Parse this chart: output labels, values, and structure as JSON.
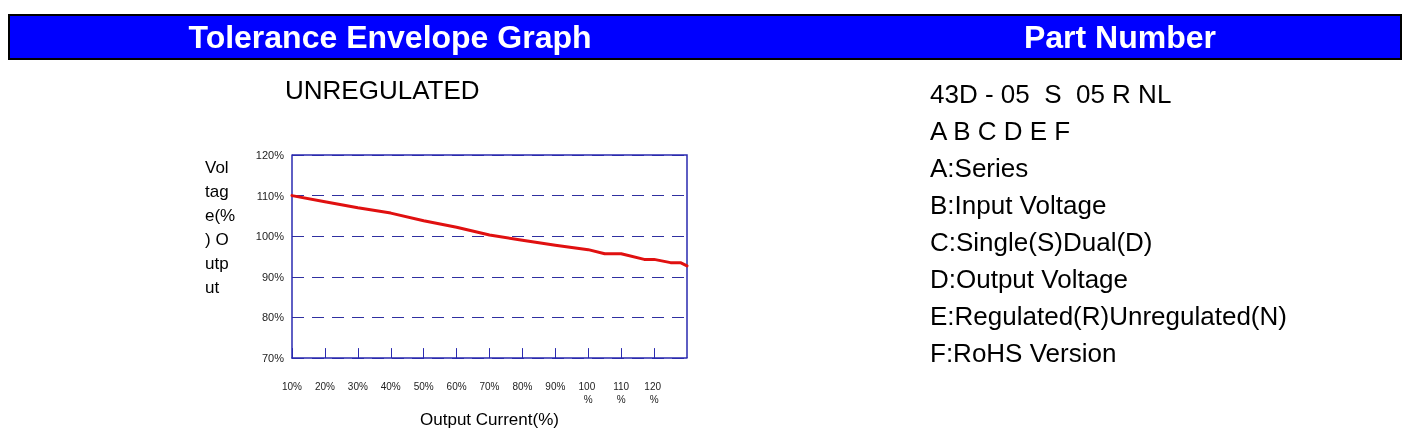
{
  "chart_data": [
    {
      "type": "line",
      "title": "Tolerance Envelope Graph",
      "subtitle": "UNREGULATED",
      "xlabel": "Output Current(%)",
      "ylabel": "Voltage(%) Output",
      "x": [
        10,
        20,
        30,
        40,
        50,
        60,
        70,
        80,
        90,
        100,
        105,
        110,
        117,
        120,
        125,
        128,
        130
      ],
      "series": [
        {
          "color": "#e01010",
          "values": [
            110,
            108.5,
            107,
            105.7,
            103.8,
            102.2,
            100.3,
            99,
            97.8,
            96.7,
            95.7,
            95.7,
            94.3,
            94.3,
            93.5,
            93.5,
            92.7
          ]
        }
      ],
      "xlim": [
        10,
        130
      ],
      "xticks": [
        {
          "value": 10,
          "label": "10%"
        },
        {
          "value": 20,
          "label": "20%"
        },
        {
          "value": 30,
          "label": "30%"
        },
        {
          "value": 40,
          "label": "40%"
        },
        {
          "value": 50,
          "label": "50%"
        },
        {
          "value": 60,
          "label": "60%"
        },
        {
          "value": 70,
          "label": "70%"
        },
        {
          "value": 80,
          "label": "80%"
        },
        {
          "value": 90,
          "label": "90%"
        },
        {
          "value": 100,
          "label": "100 %"
        },
        {
          "value": 110,
          "label": "110%"
        },
        {
          "value": 120,
          "label": "120 %"
        }
      ],
      "ylim": [
        70,
        120
      ],
      "yticks": [
        {
          "value": 70,
          "label": "70%"
        },
        {
          "value": 80,
          "label": "80%"
        },
        {
          "value": 90,
          "label": "90%"
        },
        {
          "value": 100,
          "label": "100%"
        },
        {
          "value": 110,
          "label": "110%"
        },
        {
          "value": 120,
          "label": "120%"
        }
      ],
      "grid": "y",
      "line_style": "solid",
      "marker": "none"
    },
    {
      "type": "other",
      "title": "Part Number",
      "annotations": [
        "43D - 05  S  05 R NL",
        "A B C D E F",
        "A:Series",
        "B:Input Voltage",
        "C:Single(S)Dual(D)",
        "D:Output Voltage",
        "E:Regulated(R)Unregulated(N)",
        "F:RoHS Version"
      ]
    }
  ]
}
